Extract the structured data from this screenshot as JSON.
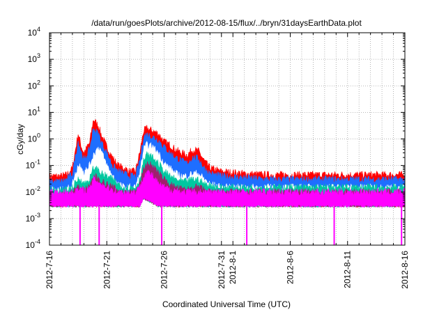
{
  "chart_data": {
    "type": "area",
    "title": "/data/run/goesPlots/archive/2012-08-15/flux/../bryn/31daysEarthData.plot",
    "xlabel": "Coordinated Universal Time (UTC)",
    "ylabel": "cGy/day",
    "yscale": "log",
    "ylim": [
      0.0001,
      10000
    ],
    "xlim": [
      "2012-07-16",
      "2012-08-16"
    ],
    "x_ticks": [
      "2012-7-16",
      "2012-7-21",
      "2012-7-26",
      "2012-7-31",
      "2012-8-1",
      "2012-8-6",
      "2012-8-11",
      "2012-8-16"
    ],
    "x_tick_days": [
      0,
      5,
      10,
      15,
      16,
      21,
      26,
      31
    ],
    "y_ticks": [
      {
        "base": "10",
        "exp": "-4",
        "value": 0.0001
      },
      {
        "base": "10",
        "exp": "-3",
        "value": 0.001
      },
      {
        "base": "10",
        "exp": "-2",
        "value": 0.01
      },
      {
        "base": "10",
        "exp": "-1",
        "value": 0.1
      },
      {
        "base": "10",
        "exp": "0",
        "value": 1
      },
      {
        "base": "10",
        "exp": "1",
        "value": 10
      },
      {
        "base": "10",
        "exp": "2",
        "value": 100
      },
      {
        "base": "10",
        "exp": "3",
        "value": 1000
      },
      {
        "base": "10",
        "exp": "4",
        "value": 10000
      }
    ],
    "grid": true,
    "x": [
      "2012-07-16",
      "2012-07-17",
      "2012-07-17 12:00",
      "2012-07-18",
      "2012-07-18 12:00",
      "2012-07-18 19:00",
      "2012-07-19",
      "2012-07-19 12:00",
      "2012-07-19 20:00",
      "2012-07-20 07:00",
      "2012-07-20 12:00",
      "2012-07-21",
      "2012-07-21 12:00",
      "2012-07-22",
      "2012-07-22 12:00",
      "2012-07-23",
      "2012-07-23 12:00",
      "2012-07-23 21:00",
      "2012-07-24 05:00",
      "2012-07-24 12:00",
      "2012-07-25",
      "2012-07-25 12:00",
      "2012-07-26",
      "2012-07-26 12:00",
      "2012-07-27",
      "2012-07-27 12:00",
      "2012-07-28",
      "2012-07-28 12:00",
      "2012-07-29",
      "2012-07-29 12:00",
      "2012-07-30",
      "2012-07-31",
      "2012-08-02",
      "2012-08-04",
      "2012-08-06",
      "2012-08-08",
      "2012-08-10",
      "2012-08-12",
      "2012-08-14",
      "2012-08-16"
    ],
    "series": [
      {
        "color": "#ff0000",
        "values": [
          0.04,
          0.04,
          0.045,
          0.08,
          1.6,
          0.5,
          0.3,
          0.7,
          5.5,
          3.0,
          1.5,
          0.5,
          0.2,
          0.1,
          0.08,
          0.06,
          0.06,
          0.3,
          2.0,
          2.5,
          2.0,
          1.6,
          0.8,
          0.6,
          0.4,
          0.3,
          0.25,
          0.4,
          0.35,
          0.15,
          0.08,
          0.06,
          0.05,
          0.045,
          0.045,
          0.045,
          0.045,
          0.045,
          0.045,
          0.045
        ]
      },
      {
        "color": "#1e6eff",
        "values": [
          0.025,
          0.025,
          0.03,
          0.05,
          0.8,
          0.3,
          0.15,
          0.4,
          2.5,
          1.5,
          0.8,
          0.3,
          0.1,
          0.06,
          0.05,
          0.04,
          0.04,
          0.15,
          1.2,
          1.5,
          1.2,
          0.9,
          0.5,
          0.3,
          0.2,
          0.15,
          0.12,
          0.2,
          0.18,
          0.08,
          0.05,
          0.04,
          0.035,
          0.03,
          0.03,
          0.03,
          0.03,
          0.03,
          0.03,
          0.03
        ]
      },
      {
        "color": "#ffffff",
        "values": [
          0.012,
          0.012,
          0.012,
          0.02,
          0.1,
          0.1,
          0.05,
          0.1,
          0.25,
          0.5,
          0.35,
          0.1,
          0.04,
          0.02,
          0.015,
          0.015,
          0.015,
          0.05,
          0.4,
          0.6,
          0.5,
          0.3,
          0.12,
          0.08,
          0.05,
          0.04,
          0.04,
          0.05,
          0.05,
          0.03,
          0.02,
          0.015,
          0.015,
          0.015,
          0.015,
          0.015,
          0.015,
          0.015,
          0.015,
          0.015
        ]
      },
      {
        "color": "#00c8a0",
        "values": [
          0.012,
          0.012,
          0.012,
          0.015,
          0.03,
          0.03,
          0.02,
          0.03,
          0.08,
          0.07,
          0.05,
          0.04,
          0.03,
          0.02,
          0.015,
          0.015,
          0.015,
          0.03,
          0.15,
          0.25,
          0.2,
          0.12,
          0.06,
          0.04,
          0.03,
          0.025,
          0.025,
          0.03,
          0.03,
          0.02,
          0.018,
          0.015,
          0.015,
          0.015,
          0.015,
          0.015,
          0.015,
          0.015,
          0.015,
          0.015
        ]
      },
      {
        "color": "#a0206e",
        "values": [
          0.008,
          0.008,
          0.008,
          0.01,
          0.015,
          0.015,
          0.012,
          0.015,
          0.04,
          0.035,
          0.025,
          0.02,
          0.015,
          0.012,
          0.01,
          0.01,
          0.01,
          0.02,
          0.07,
          0.12,
          0.1,
          0.05,
          0.03,
          0.02,
          0.015,
          0.013,
          0.012,
          0.015,
          0.015,
          0.012,
          0.01,
          0.01,
          0.01,
          0.01,
          0.01,
          0.01,
          0.01,
          0.01,
          0.01,
          0.01
        ]
      },
      {
        "color": "#ff00ff",
        "values": [
          0.01,
          0.01,
          0.01,
          0.01,
          0.012,
          0.012,
          0.012,
          0.012,
          0.03,
          0.025,
          0.02,
          0.015,
          0.012,
          0.01,
          0.01,
          0.01,
          0.01,
          0.015,
          0.04,
          0.06,
          0.04,
          0.02,
          0.015,
          0.012,
          0.012,
          0.01,
          0.01,
          0.01,
          0.01,
          0.01,
          0.01,
          0.01,
          0.01,
          0.01,
          0.01,
          0.01,
          0.01,
          0.01,
          0.01,
          0.01
        ]
      }
    ],
    "floor_series": {
      "color": "#ff00ff",
      "values": [
        0.003,
        0.003,
        0.003,
        0.003,
        0.003,
        0.003,
        0.003,
        0.003,
        0.003,
        0.003,
        0.003,
        0.003,
        0.003,
        0.003,
        0.003,
        0.003,
        0.003,
        0.003,
        0.006,
        0.005,
        0.004,
        0.003,
        0.003,
        0.003,
        0.003,
        0.003,
        0.003,
        0.003,
        0.003,
        0.003,
        0.003,
        0.003,
        0.003,
        0.003,
        0.003,
        0.003,
        0.003,
        0.003,
        0.003,
        0.003
      ]
    },
    "dropouts": {
      "color": "#ff00ff",
      "dates": [
        "2012-07-18 16:00",
        "2012-07-20 08:00",
        "2012-07-25 19:00",
        "2012-08-02 05:00",
        "2012-08-09 20:00",
        "2012-08-15 17:00"
      ],
      "min_value": 0.0001
    }
  }
}
